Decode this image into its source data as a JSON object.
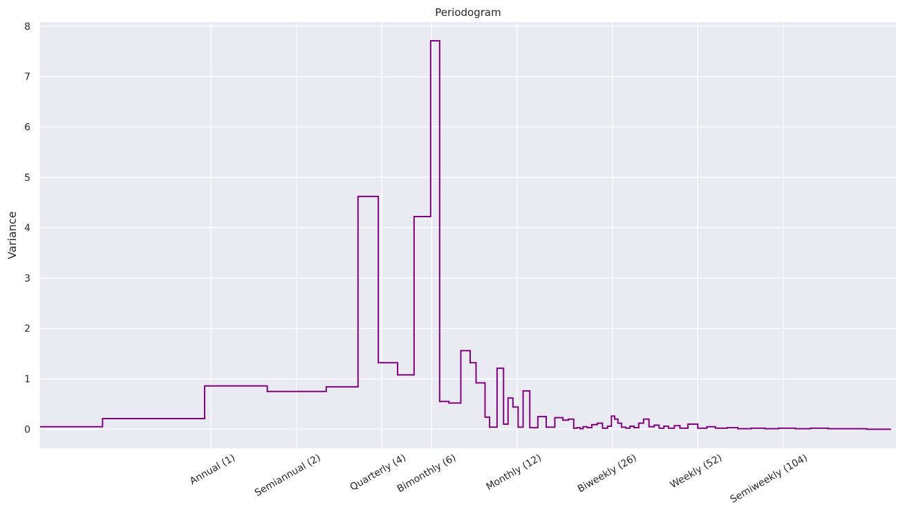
{
  "chart_data": {
    "type": "line",
    "title": "Periodogram",
    "xlabel": "",
    "ylabel": "Variance",
    "x_scale": "log",
    "grid": true,
    "xlim": [
      0.25,
      260
    ],
    "ylim": [
      -0.38,
      8.08
    ],
    "yticks": [
      0,
      1,
      2,
      3,
      4,
      5,
      6,
      7,
      8
    ],
    "xticks": [
      {
        "value": 1,
        "label": "Annual (1)"
      },
      {
        "value": 2,
        "label": "Semiannual (2)"
      },
      {
        "value": 4,
        "label": "Quarterly (4)"
      },
      {
        "value": 6,
        "label": "Bimonthly (6)"
      },
      {
        "value": 12,
        "label": "Monthly (12)"
      },
      {
        "value": 26,
        "label": "Biweekly (26)"
      },
      {
        "value": 52,
        "label": "Weekly (52)"
      },
      {
        "value": 104,
        "label": "Semiweekly (104)"
      }
    ],
    "line_color": "#800080",
    "series": [
      {
        "step": "post",
        "x": [
          0.25,
          0.415,
          0.95,
          1.58,
          2.55,
          3.3,
          3.89,
          4.55,
          5.2,
          5.95,
          6.4,
          6.9,
          7.6,
          8.2,
          8.6,
          9.25,
          9.6,
          10.2,
          10.75,
          11.15,
          11.6,
          12.1,
          12.6,
          13.3,
          14.2,
          15.2,
          16.3,
          17.4,
          18.2,
          19.0,
          19.5,
          20.0,
          20.5,
          21.2,
          22.0,
          23.0,
          24.0,
          25.0,
          25.8,
          26.5,
          27.2,
          28.0,
          29.0,
          30.0,
          31.0,
          32.2,
          33.5,
          35.0,
          36.5,
          38.0,
          39.5,
          41.0,
          43.0,
          45.0,
          48.0,
          52.0,
          56.0,
          60.0,
          66.0,
          72.0,
          80.0,
          90.0,
          100.0,
          115.0,
          130.0,
          150.0,
          175.0,
          205.0
        ],
        "y": [
          0.05,
          0.21,
          0.86,
          0.75,
          0.84,
          4.62,
          1.32,
          1.08,
          4.22,
          7.71,
          0.55,
          0.52,
          1.56,
          1.32,
          0.92,
          0.24,
          0.04,
          1.21,
          0.1,
          0.62,
          0.44,
          0.04,
          0.76,
          0.03,
          0.25,
          0.04,
          0.23,
          0.18,
          0.2,
          0.02,
          0.03,
          0.01,
          0.05,
          0.03,
          0.09,
          0.12,
          0.02,
          0.06,
          0.26,
          0.2,
          0.12,
          0.04,
          0.02,
          0.06,
          0.03,
          0.12,
          0.2,
          0.05,
          0.08,
          0.02,
          0.06,
          0.02,
          0.07,
          0.02,
          0.1,
          0.02,
          0.05,
          0.02,
          0.03,
          0.01,
          0.02,
          0.01,
          0.02,
          0.01,
          0.02,
          0.01,
          0.01,
          0.0
        ]
      }
    ]
  }
}
